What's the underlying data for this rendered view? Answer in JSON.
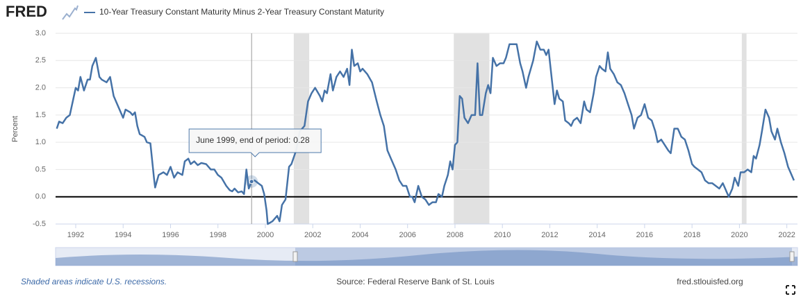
{
  "header": {
    "logo": "FRED"
  },
  "chart_data": {
    "type": "line",
    "y_label": "Percent",
    "series": [
      {
        "name": "10-Year Treasury Constant Maturity Minus 2-Year Treasury Constant Maturity",
        "color": "#4572a7",
        "x": [
          1991.2,
          1991.3,
          1991.45,
          1991.6,
          1991.75,
          1991.9,
          1992.0,
          1992.1,
          1992.2,
          1992.35,
          1992.5,
          1992.6,
          1992.7,
          1992.85,
          1993.0,
          1993.1,
          1993.3,
          1993.45,
          1993.6,
          1993.8,
          1994.0,
          1994.1,
          1994.3,
          1994.4,
          1994.5,
          1994.6,
          1994.7,
          1994.9,
          1995.0,
          1995.15,
          1995.3,
          1995.35,
          1995.5,
          1995.7,
          1995.85,
          1996.0,
          1996.15,
          1996.3,
          1996.5,
          1996.6,
          1996.75,
          1996.85,
          1997.0,
          1997.15,
          1997.3,
          1997.5,
          1997.7,
          1997.85,
          1998.0,
          1998.15,
          1998.35,
          1998.5,
          1998.6,
          1998.7,
          1998.85,
          1999.0,
          1999.1,
          1999.2,
          1999.3,
          1999.42,
          1999.55,
          1999.7,
          1999.85,
          1999.95,
          2000.05,
          2000.1,
          2000.3,
          2000.5,
          2000.6,
          2000.7,
          2000.85,
          2001.0,
          2001.1,
          2001.3,
          2001.45,
          2001.65,
          2001.8,
          2001.95,
          2002.1,
          2002.3,
          2002.4,
          2002.5,
          2002.6,
          2002.75,
          2002.85,
          2003.0,
          2003.15,
          2003.3,
          2003.45,
          2003.55,
          2003.65,
          2003.75,
          2003.9,
          2004.0,
          2004.1,
          2004.3,
          2004.5,
          2004.7,
          2004.85,
          2005.0,
          2005.15,
          2005.3,
          2005.5,
          2005.65,
          2005.8,
          2005.95,
          2006.1,
          2006.2,
          2006.3,
          2006.45,
          2006.6,
          2006.75,
          2006.9,
          2007.05,
          2007.2,
          2007.3,
          2007.45,
          2007.55,
          2007.7,
          2007.8,
          2007.9,
          2008.0,
          2008.1,
          2008.2,
          2008.3,
          2008.4,
          2008.55,
          2008.7,
          2008.85,
          2008.95,
          2009.05,
          2009.15,
          2009.3,
          2009.4,
          2009.5,
          2009.6,
          2009.75,
          2009.9,
          2010.05,
          2010.15,
          2010.3,
          2010.45,
          2010.6,
          2010.75,
          2010.85,
          2011.0,
          2011.1,
          2011.3,
          2011.45,
          2011.6,
          2011.75,
          2011.85,
          2011.95,
          2012.05,
          2012.2,
          2012.3,
          2012.4,
          2012.55,
          2012.65,
          2012.8,
          2012.9,
          2013.0,
          2013.15,
          2013.3,
          2013.45,
          2013.55,
          2013.7,
          2013.85,
          2013.95,
          2014.1,
          2014.2,
          2014.35,
          2014.45,
          2014.55,
          2014.7,
          2014.85,
          2015.0,
          2015.15,
          2015.3,
          2015.45,
          2015.55,
          2015.7,
          2015.85,
          2016.0,
          2016.15,
          2016.3,
          2016.45,
          2016.55,
          2016.7,
          2016.85,
          2017.0,
          2017.1,
          2017.25,
          2017.4,
          2017.55,
          2017.7,
          2017.85,
          2018.0,
          2018.1,
          2018.25,
          2018.4,
          2018.55,
          2018.7,
          2018.85,
          2019.0,
          2019.15,
          2019.3,
          2019.4,
          2019.55,
          2019.7,
          2019.8,
          2019.95,
          2020.05,
          2020.2,
          2020.35,
          2020.5,
          2020.6,
          2020.7,
          2020.85,
          2020.95,
          2021.1,
          2021.25,
          2021.35,
          2021.5,
          2021.6,
          2021.75,
          2021.9,
          2022.05,
          2022.2,
          2022.3
        ],
        "values": [
          1.25,
          1.38,
          1.35,
          1.45,
          1.5,
          1.8,
          2.0,
          1.95,
          2.2,
          1.95,
          2.15,
          2.15,
          2.4,
          2.55,
          2.2,
          2.15,
          2.1,
          2.2,
          1.85,
          1.65,
          1.45,
          1.6,
          1.55,
          1.5,
          1.55,
          1.3,
          1.15,
          1.1,
          1.0,
          0.98,
          0.35,
          0.17,
          0.4,
          0.45,
          0.4,
          0.55,
          0.35,
          0.45,
          0.4,
          0.65,
          0.7,
          0.6,
          0.65,
          0.58,
          0.62,
          0.6,
          0.5,
          0.5,
          0.4,
          0.35,
          0.2,
          0.12,
          0.1,
          0.15,
          0.08,
          0.1,
          0.05,
          0.5,
          0.15,
          0.28,
          0.3,
          0.25,
          0.2,
          0.05,
          -0.25,
          -0.5,
          -0.45,
          -0.35,
          -0.45,
          -0.15,
          -0.05,
          0.55,
          0.6,
          0.85,
          1.2,
          1.3,
          1.75,
          1.9,
          2.0,
          1.85,
          1.75,
          1.95,
          1.9,
          2.25,
          1.95,
          2.2,
          2.3,
          2.2,
          2.35,
          2.05,
          2.7,
          2.4,
          2.45,
          2.3,
          2.35,
          2.25,
          2.1,
          1.75,
          1.5,
          1.3,
          0.85,
          0.7,
          0.5,
          0.3,
          0.2,
          0.2,
          0.0,
          0.0,
          -0.1,
          0.2,
          0.0,
          -0.05,
          -0.15,
          -0.1,
          -0.1,
          0.05,
          0.0,
          0.2,
          0.4,
          0.65,
          0.5,
          0.95,
          1.0,
          1.85,
          1.8,
          1.45,
          1.35,
          1.5,
          1.5,
          2.45,
          1.5,
          1.5,
          1.9,
          2.05,
          1.9,
          2.55,
          2.4,
          2.45,
          2.45,
          2.55,
          2.8,
          2.8,
          2.8,
          2.45,
          2.3,
          2.0,
          2.2,
          2.5,
          2.85,
          2.7,
          2.7,
          2.6,
          2.7,
          2.3,
          1.7,
          1.95,
          1.8,
          1.75,
          1.4,
          1.35,
          1.3,
          1.4,
          1.45,
          1.35,
          1.75,
          1.6,
          1.55,
          1.9,
          2.2,
          2.4,
          2.35,
          2.3,
          2.65,
          2.35,
          2.25,
          2.1,
          2.05,
          1.9,
          1.7,
          1.5,
          1.25,
          1.45,
          1.5,
          1.7,
          1.45,
          1.4,
          1.2,
          1.0,
          1.05,
          0.95,
          0.85,
          0.8,
          1.25,
          1.25,
          1.1,
          1.05,
          0.85,
          0.6,
          0.55,
          0.5,
          0.45,
          0.3,
          0.25,
          0.25,
          0.2,
          0.15,
          0.25,
          0.15,
          0.0,
          0.15,
          0.35,
          0.2,
          0.45,
          0.45,
          0.5,
          0.45,
          0.75,
          0.7,
          0.95,
          1.2,
          1.6,
          1.45,
          1.2,
          1.05,
          1.25,
          1.0,
          0.8,
          0.55,
          0.4,
          0.3
        ]
      }
    ],
    "recessions": [
      [
        2001.2,
        2001.85
      ],
      [
        2007.95,
        2009.45
      ],
      [
        2020.1,
        2020.3
      ]
    ],
    "xlim": [
      1991.15,
      2022.45
    ],
    "xticks": [
      1992,
      1994,
      1996,
      1998,
      2000,
      2002,
      2004,
      2006,
      2008,
      2010,
      2012,
      2014,
      2016,
      2018,
      2020,
      2022
    ],
    "ylim": [
      -0.5,
      3.0
    ],
    "yticks": [
      -0.5,
      {
        "value": 0,
        "label": "0.0"
      },
      0.5,
      {
        "value": 1,
        "label": "1.0"
      },
      1.5,
      {
        "value": 2,
        "label": "2.0"
      },
      2.5,
      {
        "value": 3,
        "label": "3.0"
      }
    ],
    "grid": true,
    "tooltip": {
      "x": 1999.42,
      "label": "June 1999, end of period:",
      "value": 0.28
    }
  },
  "footer": {
    "note": "Shaded areas indicate U.S. recessions.",
    "source": "Source: Federal Reserve Bank of St. Louis",
    "site": "fred.stlouisfed.org"
  }
}
